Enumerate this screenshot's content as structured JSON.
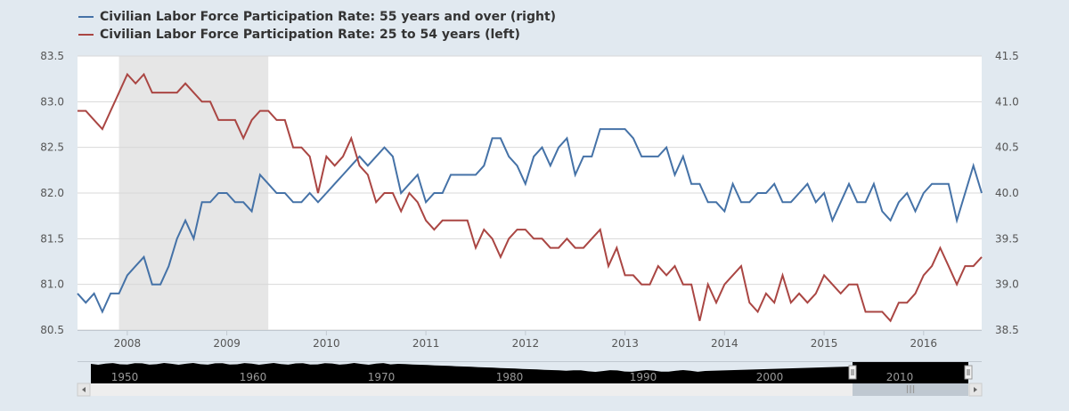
{
  "chart_data": {
    "type": "line",
    "title": "",
    "xlabel": "",
    "ylabel": "",
    "x_start": "2007-07",
    "x_frequency": "monthly",
    "x_ticks": [
      "2008",
      "2009",
      "2010",
      "2011",
      "2012",
      "2013",
      "2014",
      "2015",
      "2016"
    ],
    "left_axis": {
      "ylim": [
        80.5,
        83.5
      ],
      "ticks": [
        "80.5",
        "81.0",
        "81.5",
        "82.0",
        "82.5",
        "83.0",
        "83.5"
      ]
    },
    "right_axis": {
      "ylim": [
        38.5,
        41.5
      ],
      "ticks": [
        "38.5",
        "39.0",
        "39.5",
        "40.0",
        "40.5",
        "41.0",
        "41.5"
      ]
    },
    "grid": true,
    "legend_position": "top-left",
    "recession_shading": {
      "start": "2007-12",
      "end": "2009-06",
      "color": "#e6e6e6"
    },
    "series": [
      {
        "name": "Civilian Labor Force Participation Rate: 55 years and over (right)",
        "axis": "right",
        "color": "#4572a7",
        "values": [
          38.9,
          38.8,
          38.9,
          38.7,
          38.9,
          38.9,
          39.1,
          39.2,
          39.3,
          39.0,
          39.0,
          39.2,
          39.5,
          39.7,
          39.5,
          39.9,
          39.9,
          40.0,
          40.0,
          39.9,
          39.9,
          39.8,
          40.2,
          40.1,
          40.0,
          40.0,
          39.9,
          39.9,
          40.0,
          39.9,
          40.0,
          40.1,
          40.2,
          40.3,
          40.4,
          40.3,
          40.4,
          40.5,
          40.4,
          40.0,
          40.1,
          40.2,
          39.9,
          40.0,
          40.0,
          40.2,
          40.2,
          40.2,
          40.2,
          40.3,
          40.6,
          40.6,
          40.4,
          40.3,
          40.1,
          40.4,
          40.5,
          40.3,
          40.5,
          40.6,
          40.2,
          40.4,
          40.4,
          40.7,
          40.7,
          40.7,
          40.7,
          40.6,
          40.4,
          40.4,
          40.4,
          40.5,
          40.2,
          40.4,
          40.1,
          40.1,
          39.9,
          39.9,
          39.8,
          40.1,
          39.9,
          39.9,
          40.0,
          40.0,
          40.1,
          39.9,
          39.9,
          40.0,
          40.1,
          39.9,
          40.0,
          39.7,
          39.9,
          40.1,
          39.9,
          39.9,
          40.1,
          39.8,
          39.7,
          39.9,
          40.0,
          39.8,
          40.0,
          40.1,
          40.1,
          40.1,
          39.7,
          40.0,
          40.3,
          40.0
        ]
      },
      {
        "name": "Civilian Labor Force Participation Rate: 25 to 54 years (left)",
        "axis": "left",
        "color": "#aa4643",
        "values": [
          82.9,
          82.9,
          82.8,
          82.7,
          82.9,
          83.1,
          83.3,
          83.2,
          83.3,
          83.1,
          83.1,
          83.1,
          83.1,
          83.2,
          83.1,
          83.0,
          83.0,
          82.8,
          82.8,
          82.8,
          82.6,
          82.8,
          82.9,
          82.9,
          82.8,
          82.8,
          82.5,
          82.5,
          82.4,
          82.0,
          82.4,
          82.3,
          82.4,
          82.6,
          82.3,
          82.2,
          81.9,
          82.0,
          82.0,
          81.8,
          82.0,
          81.9,
          81.7,
          81.6,
          81.7,
          81.7,
          81.7,
          81.7,
          81.4,
          81.6,
          81.5,
          81.3,
          81.5,
          81.6,
          81.6,
          81.5,
          81.5,
          81.4,
          81.4,
          81.5,
          81.4,
          81.4,
          81.5,
          81.6,
          81.2,
          81.4,
          81.1,
          81.1,
          81.0,
          81.0,
          81.2,
          81.1,
          81.2,
          81.0,
          81.0,
          80.6,
          81.0,
          80.8,
          81.0,
          81.1,
          81.2,
          80.8,
          80.7,
          80.9,
          80.8,
          81.1,
          80.8,
          80.9,
          80.8,
          80.9,
          81.1,
          81.0,
          80.9,
          81.0,
          81.0,
          80.7,
          80.7,
          80.7,
          80.6,
          80.8,
          80.8,
          80.9,
          81.1,
          81.2,
          81.4,
          81.2,
          81.0,
          81.2,
          81.2,
          81.3
        ]
      }
    ]
  },
  "navigator": {
    "labels": [
      "1950",
      "1960",
      "1970",
      "1980",
      "1990",
      "2000",
      "2010"
    ],
    "scroll_left_icon": "arrow-left-icon",
    "scroll_right_icon": "arrow-right-icon",
    "scrollbar_grip": "III"
  }
}
